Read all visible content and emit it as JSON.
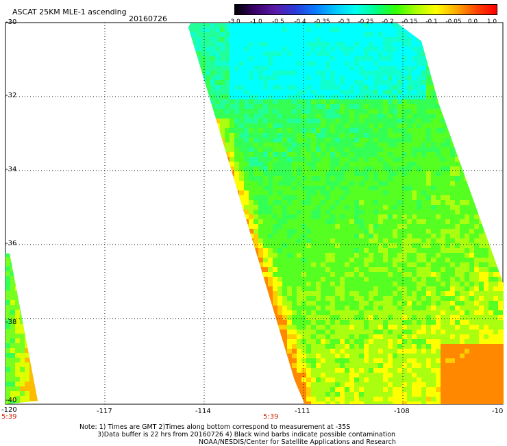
{
  "header": {
    "title": "ASCAT 25KM MLE-1 ascending",
    "date": "20160726"
  },
  "colorbar": {
    "labels": [
      "-3.0",
      "-1.0",
      "-0.5",
      "-0.4",
      "-0.35",
      "-0.3",
      "-0.25",
      "-0.2",
      "-0.15",
      "-0.1",
      "-0.05",
      "0.0",
      "1.0"
    ],
    "colors": [
      "#000000",
      "#3a006a",
      "#5a1aa8",
      "#2a3ad8",
      "#0a7aff",
      "#00c8ff",
      "#00ffee",
      "#00ff88",
      "#33ff00",
      "#aaff00",
      "#ffff00",
      "#ffaa00",
      "#ff4400",
      "#ff0000"
    ]
  },
  "map": {
    "lat_labels": [
      "-30",
      "-32",
      "-34",
      "-36",
      "-38",
      "-40"
    ],
    "lon_labels": [
      "-120",
      "-117",
      "-114",
      "-111",
      "-108",
      "-10"
    ],
    "time_labels": [
      "5:39",
      "5:39"
    ]
  },
  "footer": {
    "line1": "Note: 1) Times are GMT 2)Times along bottom correspond to measurement at -35S",
    "line2": "3)Data buffer is 22 hrs from 20160726 4) Black wind barbs indicate possible contamination",
    "line3": "NOAA/NESDIS/Center for Satellite Applications and Research"
  }
}
